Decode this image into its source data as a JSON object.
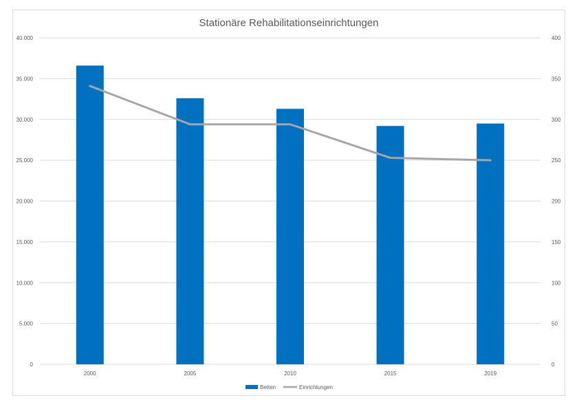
{
  "chart_data": {
    "type": "bar",
    "title": "Stationäre Rehabilitationseinrichtungen",
    "categories": [
      "2000",
      "2005",
      "2010",
      "2015",
      "2019"
    ],
    "series": [
      {
        "name": "Betten",
        "kind": "bar",
        "axis": "left",
        "values": [
          36600,
          32600,
          31300,
          29200,
          29500
        ]
      },
      {
        "name": "Einrichtungen",
        "kind": "line",
        "axis": "right",
        "values": [
          341,
          294,
          294,
          253,
          250
        ]
      }
    ],
    "ylim_left": [
      0,
      40000
    ],
    "ylim_right": [
      0,
      400
    ],
    "yticks_left": [
      "0",
      "5.000",
      "10.000",
      "15.000",
      "20.000",
      "25.000",
      "30.000",
      "35.000",
      "40.000"
    ],
    "yticks_right": [
      "0",
      "50",
      "100",
      "150",
      "200",
      "250",
      "300",
      "350",
      "400"
    ],
    "legend_position": "bottom",
    "colors": {
      "bar": "#0070c0",
      "line": "#a6a6a6",
      "grid": "#d9d9d9",
      "text": "#595959"
    }
  }
}
